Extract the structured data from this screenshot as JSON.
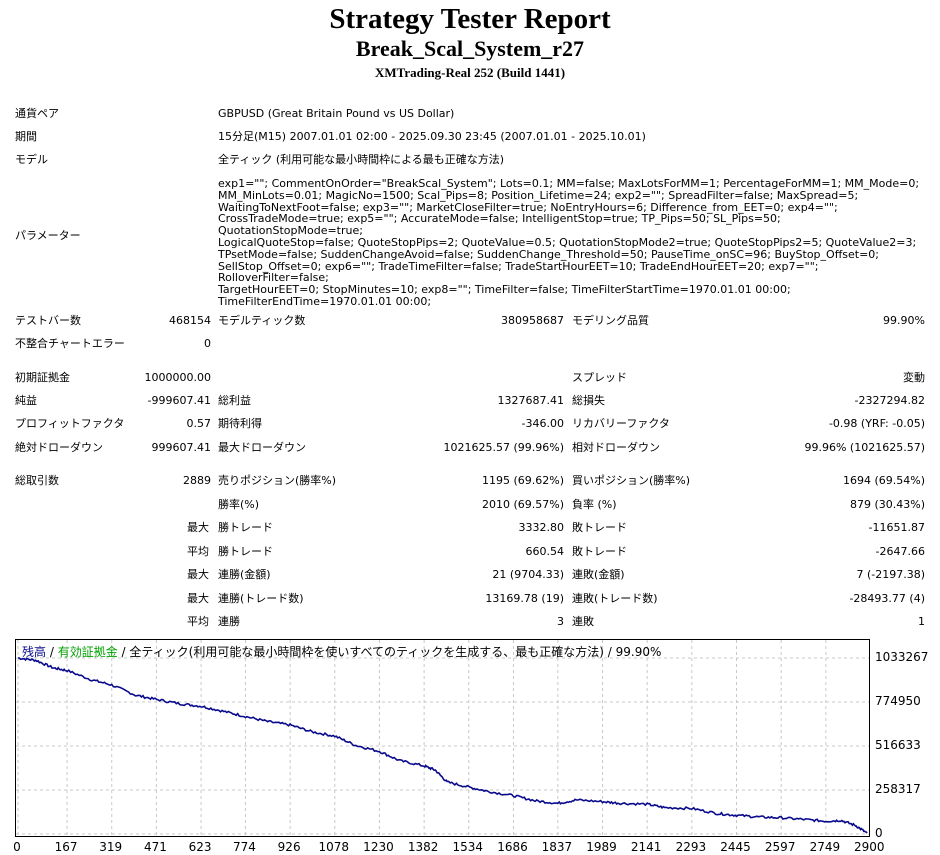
{
  "header": {
    "title": "Strategy Tester Report",
    "ea_name": "Break_Scal_System_r27",
    "server": "XMTrading-Real 252 (Build 1441)"
  },
  "info": {
    "symbol_label": "通貨ペア",
    "symbol_value": "GBPUSD (Great Britain Pound vs US Dollar)",
    "period_label": "期間",
    "period_value": "15分足(M15) 2007.01.01 02:00 - 2025.09.30 23:45 (2007.01.01 - 2025.10.01)",
    "model_label": "モデル",
    "model_value": "全ティック (利用可能な最小時間枠による最も正確な方法)",
    "params_label": "パラメーター",
    "params_value": "exp1=\"\"; CommentOnOrder=\"BreakScal_System\"; Lots=0.1; MM=false; MaxLotsForMM=1; PercentageForMM=1; MM_Mode=0;\nMM_MinLots=0.01; MagicNo=1500; Scal_Pips=8; Position_Lifetime=24; exp2=\"\"; SpreadFilter=false; MaxSpread=5;\nWaitingToNextFoot=false; exp3=\"\"; MarketCloseFilter=true; NoEntryHours=6; Difference_from_EET=0; exp4=\"\";\nCrossTradeMode=true; exp5=\"\"; AccurateMode=false; IntelligentStop=true; TP_Pips=50; SL_Pips=50; QuotationStopMode=true;\nLogicalQuoteStop=false; QuoteStopPips=2; QuoteValue=0.5; QuotationStopMode2=true; QuoteStopPips2=5; QuoteValue2=3;\nTPsetMode=false; SuddenChangeAvoid=false; SuddenChange_Threshold=50; PauseTime_onSC=96; BuyStop_Offset=0;\nSellStop_Offset=0; exp6=\"\"; TradeTimeFilter=false; TradeStartHourEET=10; TradeEndHourEET=20; exp7=\"\"; RolloverFilter=false;\nTargetHourEET=0; StopMinutes=10; exp8=\"\"; TimeFilter=false; TimeFilterStartTime=1970.01.01 00:00;\nTimeFilterEndTime=1970.01.01 00:00;"
  },
  "stats": {
    "bars_label": "テストバー数",
    "bars_value": "468154",
    "ticks_label": "モデルティック数",
    "ticks_value": "380958687",
    "quality_label": "モデリング品質",
    "quality_value": "99.90%",
    "mismatch_label": "不整合チャートエラー",
    "mismatch_value": "0",
    "deposit_label": "初期証拠金",
    "deposit_value": "1000000.00",
    "spread_label": "スプレッド",
    "spread_value": "変動",
    "net_label": "純益",
    "net_value": "-999607.41",
    "gross_profit_label": "総利益",
    "gross_profit_value": "1327687.41",
    "gross_loss_label": "総損失",
    "gross_loss_value": "-2327294.82",
    "pf_label": "プロフィットファクタ",
    "pf_value": "0.57",
    "expected_label": "期待利得",
    "expected_value": "-346.00",
    "recovery_label": "リカバリーファクタ",
    "recovery_value": "-0.98 (YRF: -0.05)",
    "abs_dd_label": "絶対ドローダウン",
    "abs_dd_value": "999607.41",
    "max_dd_label": "最大ドローダウン",
    "max_dd_value": "1021625.57 (99.96%)",
    "rel_dd_label": "相対ドローダウン",
    "rel_dd_value": "99.96% (1021625.57)",
    "trades_label": "総取引数",
    "trades_value": "2889",
    "short_label": "売りポジション(勝率%)",
    "short_value": "1195 (69.62%)",
    "long_label": "買いポジション(勝率%)",
    "long_value": "1694 (69.54%)",
    "winrate_label": "勝率(%)",
    "winrate_value": "2010 (69.57%)",
    "lossrate_label": "負率 (%)",
    "lossrate_value": "879 (30.43%)",
    "max_label": "最大",
    "avg_label": "平均",
    "largest_win_label": "勝トレード",
    "largest_win_value": "3332.80",
    "largest_loss_label": "敗トレード",
    "largest_loss_value": "-11651.87",
    "avg_win_label": "勝トレード",
    "avg_win_value": "660.54",
    "avg_loss_label": "敗トレード",
    "avg_loss_value": "-2647.66",
    "max_consec_win_label": "連勝(金額)",
    "max_consec_win_value": "21 (9704.33)",
    "max_consec_loss_label": "連敗(金額)",
    "max_consec_loss_value": "7 (-2197.38)",
    "max_consec_profit_label": "連勝(トレード数)",
    "max_consec_profit_value": "13169.78 (19)",
    "max_consec_lossamt_label": "連敗(トレード数)",
    "max_consec_lossamt_value": "-28493.77 (4)",
    "avg_consec_win_label": "連勝",
    "avg_consec_win_value": "3",
    "avg_consec_loss_label": "連敗",
    "avg_consec_loss_value": "1"
  },
  "chart_data": {
    "type": "line",
    "legend": {
      "balance": "残高",
      "sep1": " / ",
      "equity": "有効証拠金",
      "sep2": " / ",
      "model": "全ティック(利用可能な最小時間枠を使いすべてのティックを生成する、最も正確な方法)",
      "sep3": " / ",
      "quality": "99.90%"
    },
    "colors": {
      "balance": "#0a0a8c",
      "equity": "#00a000",
      "grid": "#c8c8c8"
    },
    "y_ticks": [
      "1033267",
      "774950",
      "516633",
      "258317",
      "0"
    ],
    "x_ticks": [
      "0",
      "167",
      "319",
      "471",
      "623",
      "774",
      "926",
      "1078",
      "1230",
      "1382",
      "1534",
      "1686",
      "1837",
      "1989",
      "2141",
      "2293",
      "2445",
      "2597",
      "2749",
      "2900"
    ],
    "xlim": [
      0,
      2889
    ],
    "ylim": [
      0,
      1033267
    ],
    "series": [
      {
        "name": "残高",
        "x": [
          0,
          60,
          120,
          167,
          250,
          319,
          400,
          471,
          550,
          623,
          700,
          774,
          850,
          926,
          1000,
          1078,
          1150,
          1230,
          1300,
          1382,
          1420,
          1460,
          1534,
          1600,
          1686,
          1760,
          1837,
          1900,
          1989,
          2050,
          2141,
          2200,
          2293,
          2380,
          2445,
          2520,
          2597,
          2680,
          2749,
          2800,
          2850,
          2889
        ],
        "y": [
          1033267,
          1020000,
          975000,
          960000,
          905000,
          875000,
          815000,
          790000,
          765000,
          750000,
          720000,
          690000,
          660000,
          640000,
          600000,
          575000,
          520000,
          485000,
          430000,
          400000,
          375000,
          305000,
          275000,
          250000,
          225000,
          195000,
          180000,
          200000,
          190000,
          180000,
          175000,
          155000,
          150000,
          120000,
          110000,
          100000,
          95000,
          85000,
          75000,
          80000,
          50000,
          5000
        ]
      }
    ]
  }
}
